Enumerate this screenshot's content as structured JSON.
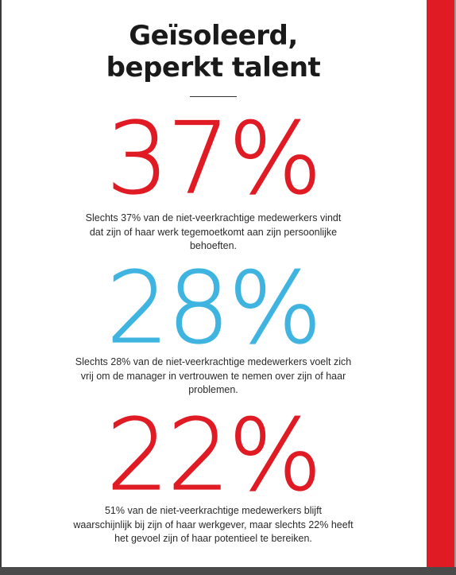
{
  "title": {
    "line1": "Geïsoleerd,",
    "line2": "beperkt talent"
  },
  "colors": {
    "red": "#e01b24",
    "blue": "#3fb4e0",
    "text": "#2a2a2a"
  },
  "stats": [
    {
      "value": "37%",
      "color": "#e01b24",
      "lines": [
        "Slechts 37% van de niet-veerkrachtige medewerkers vindt",
        "dat zijn of haar werk tegemoetkomt aan zijn persoonlijke",
        "behoeften."
      ]
    },
    {
      "value": "28%",
      "color": "#3fb4e0",
      "lines": [
        "Slechts 28% van de niet-veerkrachtige medewerkers voelt zich",
        "vrij om de manager in vertrouwen te nemen over zijn of haar",
        "problemen."
      ]
    },
    {
      "value": "22%",
      "color": "#e01b24",
      "lines": [
        "51% van de niet-veerkrachtige medewerkers blijft",
        "waarschijnlijk bij zijn of haar werkgever, maar slechts 22% heeft",
        "het gevoel zijn of haar potentieel te bereiken."
      ]
    }
  ]
}
